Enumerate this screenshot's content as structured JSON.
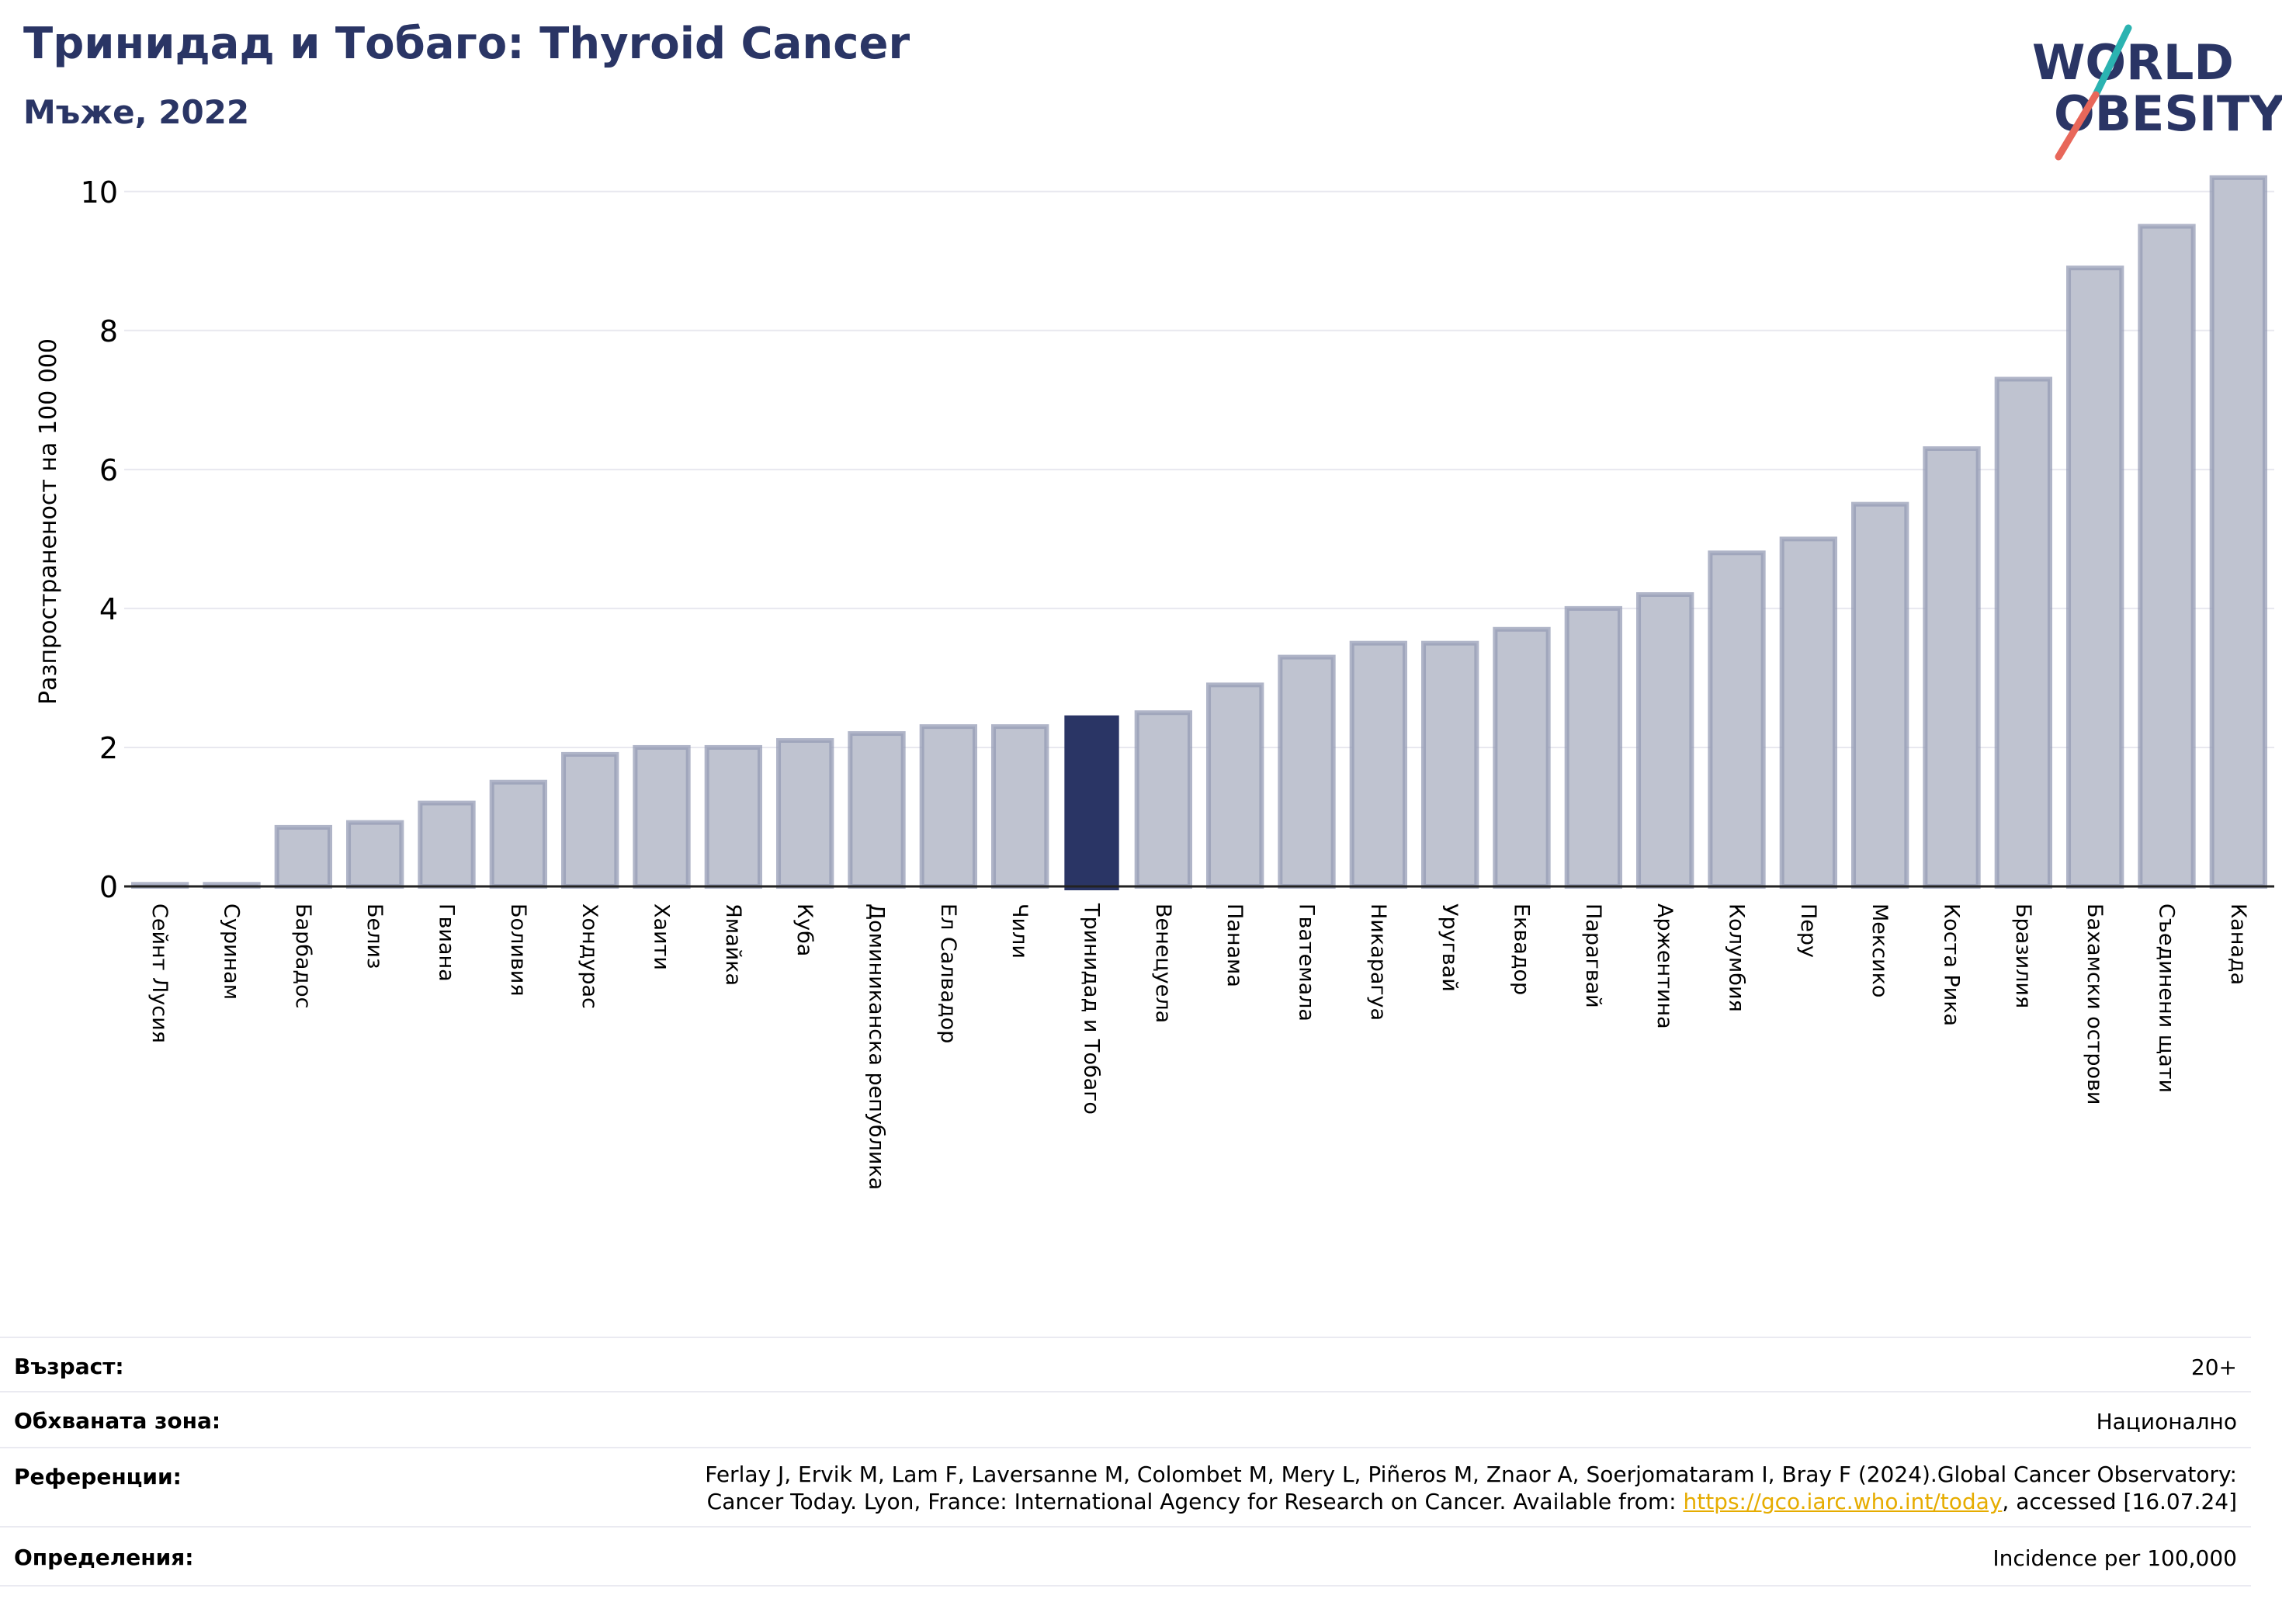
{
  "title": "Тринидад и Тобаго: Thyroid Cancer",
  "subtitle": "Мъже, 2022",
  "logo": {
    "line1": "WORLD",
    "line2": "OBESITY"
  },
  "colors": {
    "bar": "#bfc3d0",
    "bar_edge": "#959cb5",
    "highlight": "#2a3565",
    "grid": "#e8e8ef",
    "title": "#2a3565",
    "link": "#e6ac00"
  },
  "chart_data": {
    "type": "bar",
    "title": "Тринидад и Тобаго: Thyroid Cancer",
    "subtitle": "Мъже, 2022",
    "ylabel": "Разпространеност  на 100 000",
    "ylim": [
      0,
      10.5
    ],
    "yticks": [
      0,
      2,
      4,
      6,
      8,
      10
    ],
    "grid": true,
    "highlight": "Тринидад и Тобаго",
    "categories": [
      "Сейнт Лусия",
      "Суринам",
      "Барбадос",
      "Белиз",
      "Гвиана",
      "Боливия",
      "Хондурас",
      "Хаити",
      "Ямайка",
      "Куба",
      "Доминиканска република",
      "Ел Салвадор",
      "Чили",
      "Тринидад и Тобаго",
      "Венецуела",
      "Панама",
      "Гватемала",
      "Никарагуа",
      "Уругвай",
      "Еквадор",
      "Парагвай",
      "Аржентина",
      "Колумбия",
      "Перу",
      "Мексико",
      "Коста Рика",
      "Бразилия",
      "Бахамски острови",
      "Съединени щати",
      "Канада"
    ],
    "values": [
      0.03,
      0.03,
      0.85,
      0.92,
      1.2,
      1.5,
      1.9,
      2.0,
      2.0,
      2.1,
      2.2,
      2.3,
      2.3,
      2.45,
      2.5,
      2.9,
      3.3,
      3.5,
      3.5,
      3.7,
      4.0,
      4.2,
      4.8,
      5.0,
      5.5,
      6.3,
      7.3,
      8.9,
      9.5,
      10.2
    ]
  },
  "meta": [
    {
      "label": "Възраст:",
      "value": "20+"
    },
    {
      "label": "Обхваната зона:",
      "value": "Национално"
    },
    {
      "label": "Референции:",
      "value_line1": "Ferlay J, Ervik M, Lam F, Laversanne M, Colombet M, Mery L, Piñeros M, Znaor A, Soerjomataram I, Bray F (2024).Global Cancer Observatory:",
      "value_line2_pre": "Cancer Today. Lyon, France: International Agency for Research on Cancer. Available from: ",
      "value_link": "https://gco.iarc.who.int/today",
      "value_line2_post": ", accessed [16.07.24]"
    },
    {
      "label": "Определения:",
      "value": "Incidence per 100,000"
    }
  ]
}
